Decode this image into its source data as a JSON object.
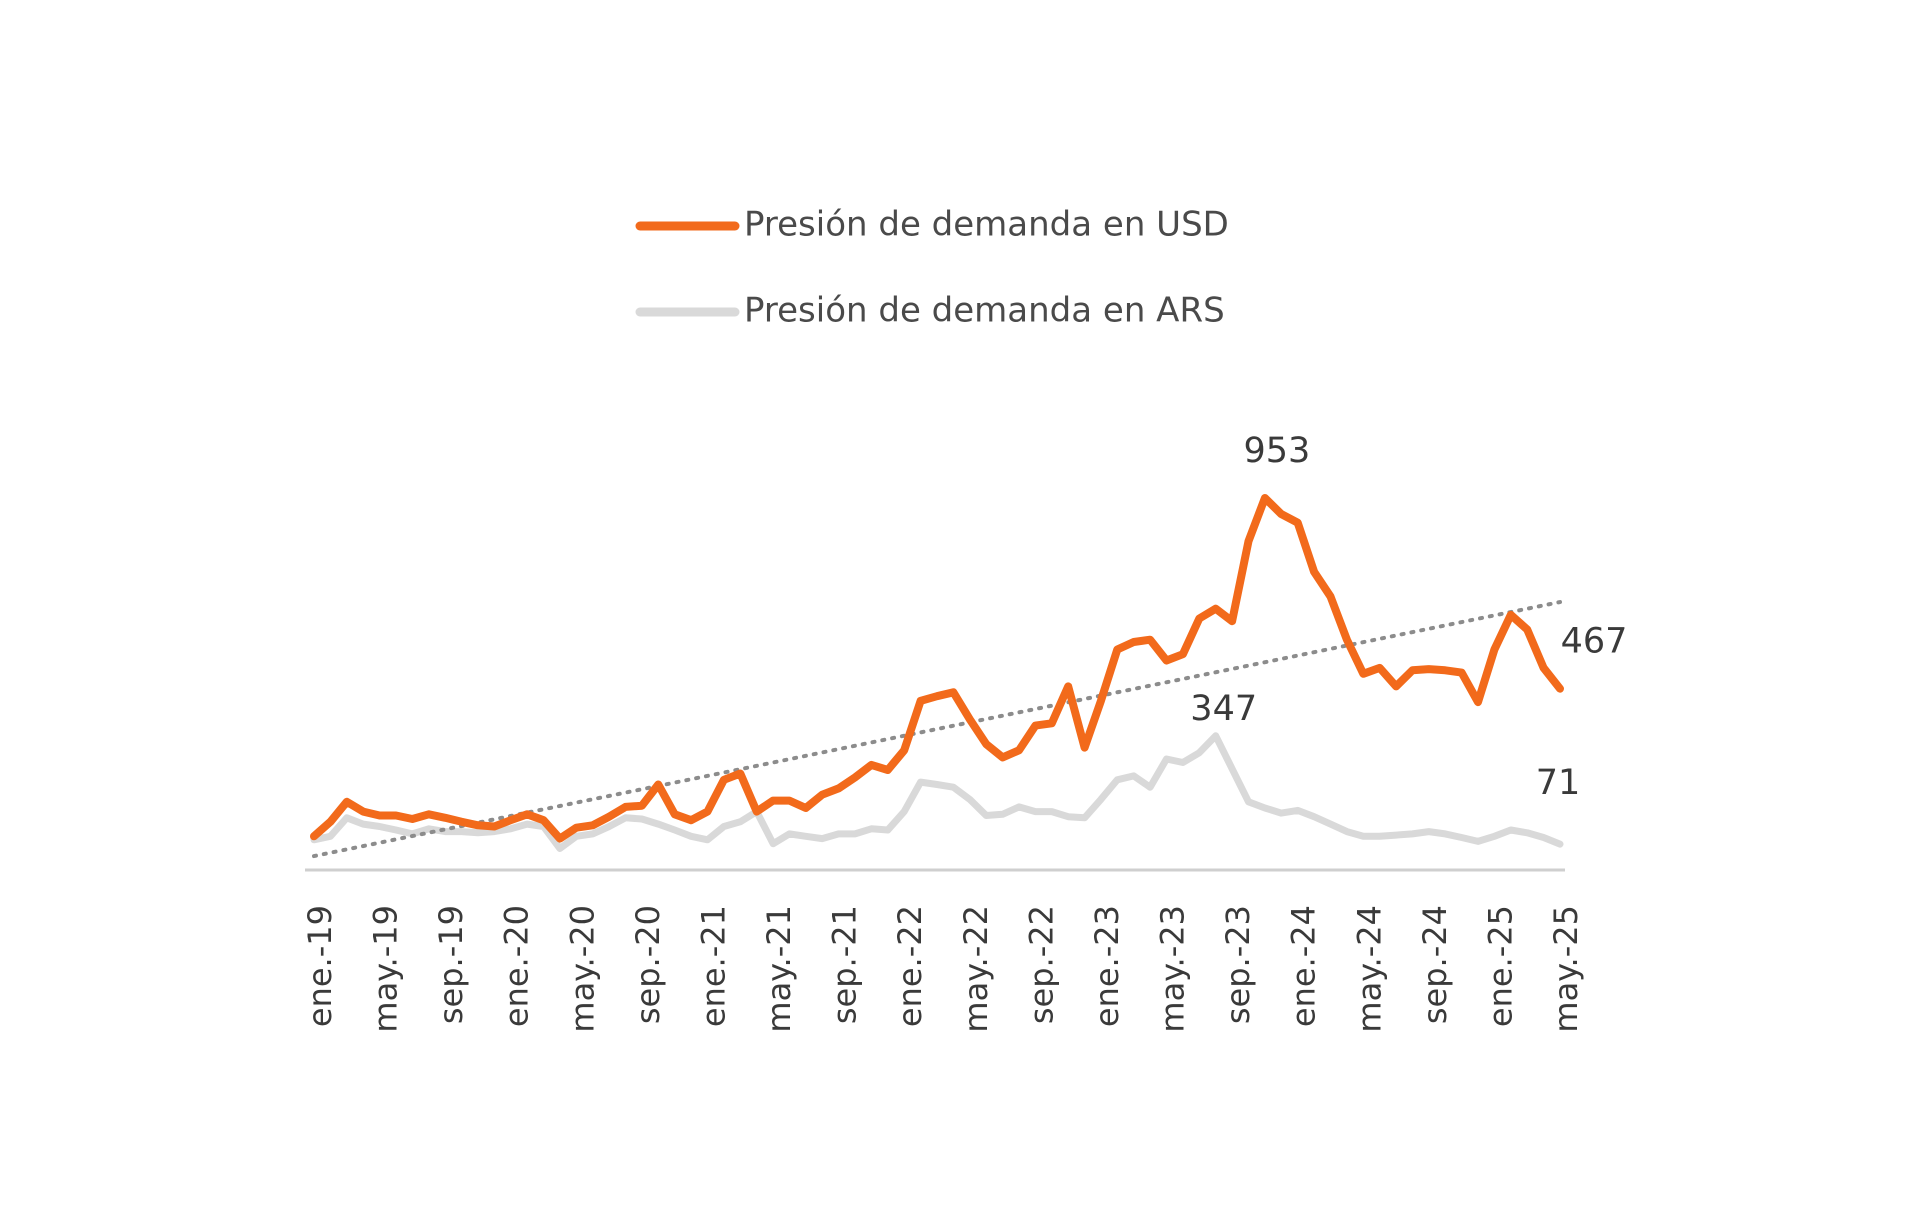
{
  "chart_data": {
    "type": "line",
    "categories": [
      "ene.-19",
      null,
      null,
      null,
      "may.-19",
      null,
      null,
      null,
      "sep.-19",
      null,
      null,
      null,
      "ene.-20",
      null,
      null,
      null,
      "may.-20",
      null,
      null,
      null,
      "sep.-20",
      null,
      null,
      null,
      "ene.-21",
      null,
      null,
      null,
      "may.-21",
      null,
      null,
      null,
      "sep.-21",
      null,
      null,
      null,
      "ene.-22",
      null,
      null,
      null,
      "may.-22",
      null,
      null,
      null,
      "sep.-22",
      null,
      null,
      null,
      "ene.-23",
      null,
      null,
      null,
      "may.-23",
      null,
      null,
      null,
      "sep.-23",
      null,
      null,
      null,
      "ene.-24",
      null,
      null,
      null,
      "may.-24",
      null,
      null,
      null,
      "sep.-24",
      null,
      null,
      null,
      "ene.-25",
      null,
      null,
      null,
      "may.-25"
    ],
    "series": [
      {
        "name": "Presión de demanda en USD",
        "color": "#f26a1b",
        "labeled": [
          58,
          76
        ],
        "values": [
          91,
          128,
          179,
          154,
          144,
          144,
          135,
          147,
          138,
          128,
          119,
          116,
          132,
          147,
          132,
          85,
          113,
          119,
          141,
          166,
          169,
          223,
          147,
          132,
          154,
          235,
          251,
          154,
          182,
          182,
          163,
          197,
          213,
          241,
          273,
          260,
          310,
          436,
          448,
          458,
          389,
          326,
          292,
          310,
          373,
          379,
          473,
          317,
          436,
          567,
          586,
          592,
          539,
          555,
          646,
          671,
          639,
          843,
          953,
          912,
          890,
          765,
          702,
          592,
          505,
          520,
          473,
          514,
          517,
          514,
          508,
          433,
          567,
          655,
          618,
          520,
          467
        ]
      },
      {
        "name": "Presión de demanda en ARS",
        "color": "#d9d9d9",
        "labeled": [
          55,
          76
        ],
        "values": [
          82,
          91,
          138,
          122,
          116,
          107,
          97,
          110,
          103,
          103,
          100,
          103,
          110,
          122,
          116,
          60,
          91,
          97,
          116,
          138,
          135,
          122,
          107,
          91,
          82,
          116,
          128,
          154,
          72,
          97,
          91,
          85,
          97,
          97,
          110,
          107,
          154,
          229,
          223,
          216,
          185,
          144,
          147,
          166,
          154,
          154,
          141,
          138,
          185,
          235,
          245,
          216,
          288,
          279,
          304,
          347,
          263,
          179,
          163,
          150,
          157,
          141,
          122,
          103,
          91,
          91,
          94,
          97,
          103,
          97,
          88,
          78,
          91,
          107,
          100,
          88,
          71
        ]
      }
    ],
    "trendline": {
      "series": 0,
      "color": "#8c8c8c"
    }
  }
}
